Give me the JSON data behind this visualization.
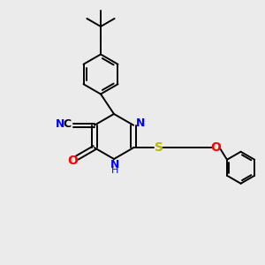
{
  "bg_color": "#ebebeb",
  "bond_color": "#000000",
  "n_color": "#0000ff",
  "o_color": "#ff0000",
  "s_color": "#b8b800",
  "c_color": "#000000",
  "figsize": [
    3.0,
    3.0
  ],
  "dpi": 100,
  "xlim": [
    0,
    10
  ],
  "ylim": [
    0,
    10
  ]
}
